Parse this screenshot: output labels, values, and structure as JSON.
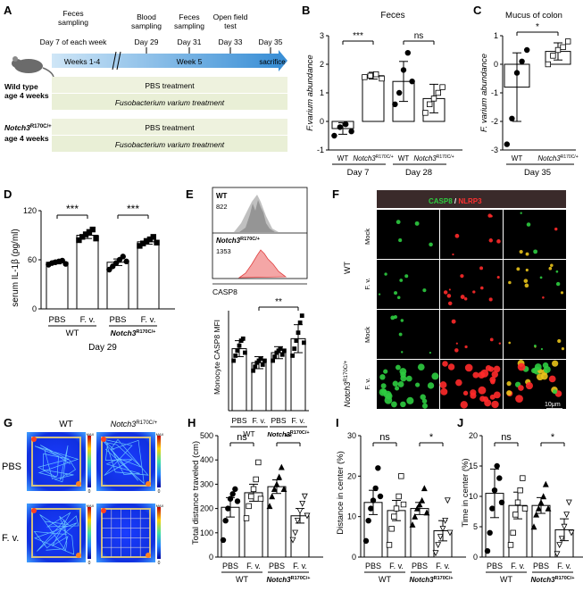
{
  "panelA": {
    "letter": "A",
    "timeline_labels": [
      {
        "l1": "Feces",
        "l2": "sampling",
        "l3": "Day 7 of each week"
      },
      {
        "l1": "Blood",
        "l2": "sampling",
        "l3": "Day 29"
      },
      {
        "l1": "Feces",
        "l2": "sampling",
        "l3": "Day 31"
      },
      {
        "l1": "Open field",
        "l2": "test",
        "l3": "Day 33"
      },
      {
        "l3": "Day 35"
      }
    ],
    "weeks14": "Weeks 1-4",
    "week5": "Week 5",
    "sacrifice": "sacrifice",
    "wt_group": {
      "l1": "Wild type",
      "l2": "age 4 weeks"
    },
    "notch_group": {
      "l1": "Notch3",
      "sup": "R170C/+",
      "l2": "age 4 weeks"
    },
    "pbs_treatment": "PBS treatment",
    "fv_treatment": "Fusobacterium varium treatment"
  },
  "panelB": {
    "letter": "B",
    "chart_data": {
      "type": "bar",
      "title": "Feces",
      "ylabel": "F.varium abundance",
      "ylim": [
        -1,
        3
      ],
      "yticks": [
        "-1",
        "0",
        "1",
        "2",
        "3"
      ],
      "categories": [
        "WT",
        "Notch3R170C/+",
        "WT",
        "Notch3R170C/+"
      ],
      "cat_wt": "WT",
      "cat_notch": "Notch3",
      "cat_sup": "R170C/+",
      "groups": [
        "Day 7",
        "Day 28"
      ],
      "values": [
        -0.25,
        1.6,
        1.4,
        0.8
      ],
      "errors": [
        0.2,
        0.12,
        0.7,
        0.5
      ],
      "points": [
        [
          -0.5,
          -0.2,
          -0.1,
          -0.35
        ],
        [
          1.55,
          1.6,
          1.65,
          1.5
        ],
        [
          0.6,
          1.0,
          1.8,
          2.4,
          1.4
        ],
        [
          0.3,
          0.6,
          0.8,
          1.0,
          1.2
        ]
      ],
      "sig": [
        "***",
        "ns"
      ]
    }
  },
  "panelC": {
    "letter": "C",
    "chart_data": {
      "type": "bar",
      "title": "Mucus of colon",
      "ylabel": "F. varium abundance",
      "ylim": [
        -3,
        1
      ],
      "yticks": [
        "-3",
        "-2",
        "-1",
        "0",
        "1"
      ],
      "cat_wt": "WT",
      "cat_notch": "Notch3",
      "cat_sup": "R170C/+",
      "group": "Day 35",
      "values": [
        -0.8,
        0.45
      ],
      "errors": [
        1.2,
        0.3
      ],
      "points": [
        [
          -2.8,
          -1.9,
          -0.3,
          0.1,
          0.5
        ],
        [
          0.0,
          0.3,
          0.5,
          0.6,
          0.8
        ]
      ],
      "sig": "*"
    }
  },
  "panelD": {
    "letter": "D",
    "chart_data": {
      "type": "bar",
      "ylabel": "serum IL-1β (pg/ml)",
      "ylim": [
        0,
        120
      ],
      "yticks": [
        "0",
        "60",
        "120"
      ],
      "categories": [
        "PBS",
        "F. v.",
        "PBS",
        "F. v."
      ],
      "geno_wt": "WT",
      "geno_notch": "Notch3",
      "geno_sup": "R170C/+",
      "day": "Day 29",
      "values": [
        57,
        90,
        57,
        82
      ],
      "errors": [
        2,
        4,
        4,
        3
      ],
      "points": [
        [
          54,
          56,
          57,
          58,
          59,
          55
        ],
        [
          84,
          88,
          91,
          94,
          97,
          86
        ],
        [
          48,
          52,
          56,
          60,
          64,
          58
        ],
        [
          77,
          80,
          83,
          85,
          88,
          81
        ]
      ],
      "sig": [
        "***",
        "***"
      ]
    }
  },
  "panelE": {
    "letter": "E",
    "hist_wt_label": "WT",
    "hist_wt_value": "822",
    "hist_notch_label": "Notch3",
    "hist_notch_sup": "R170C/+",
    "hist_notch_value": "1353",
    "hist_xlabel": "CASP8",
    "chart_data": {
      "type": "bar",
      "ylabel": "Monocyte CASP8 MFI",
      "categories": [
        "PBS",
        "F. v.",
        "PBS",
        "F. v."
      ],
      "geno_wt": "WT",
      "geno_notch": "Notch3",
      "geno_sup": "R170C/+",
      "values": [
        0.62,
        0.48,
        0.58,
        0.72
      ],
      "errors": [
        0.08,
        0.06,
        0.06,
        0.14
      ],
      "points": [
        [
          0.5,
          0.55,
          0.6,
          0.65,
          0.7,
          0.72,
          0.58
        ],
        [
          0.4,
          0.44,
          0.48,
          0.5,
          0.52,
          0.46,
          0.5
        ],
        [
          0.5,
          0.54,
          0.58,
          0.6,
          0.62,
          0.56,
          0.6
        ],
        [
          0.55,
          0.62,
          0.7,
          0.78,
          0.88,
          0.95,
          0.68
        ]
      ],
      "sig": "**"
    }
  },
  "panelF": {
    "letter": "F",
    "casp8": "CASP8",
    "slash": " / ",
    "nlrp3": "NLRP3",
    "wt": "WT",
    "notch": "Notch3",
    "notch_sup": "R170C/+",
    "mock": "Mock",
    "fv": "F. v.",
    "scale": "10μm",
    "colors": {
      "green": "#2ecc40",
      "red": "#ff2a2a",
      "yellow": "#e8c21a"
    }
  },
  "panelG": {
    "letter": "G",
    "col_wt": "WT",
    "col_notch": "Notch3",
    "col_sup": "R170C/+",
    "row_pbs": "PBS",
    "row_fv": "F. v.",
    "scale_max": "MAX",
    "scale_min": "0"
  },
  "panelH": {
    "letter": "H",
    "chart_data": {
      "type": "bar",
      "ylabel": "Total distance traveled (cm)",
      "ylim": [
        0,
        500
      ],
      "yticks": [
        "0",
        "100",
        "200",
        "300",
        "400",
        "500"
      ],
      "categories": [
        "PBS",
        "F. v.",
        "PBS",
        "F. v."
      ],
      "geno_wt": "WT",
      "geno_notch": "Notch3",
      "geno_sup": "R170C/+",
      "values": [
        205,
        265,
        290,
        170
      ],
      "errors": [
        40,
        35,
        28,
        30
      ],
      "points": [
        [
          70,
          150,
          200,
          240,
          260,
          280,
          230
        ],
        [
          160,
          210,
          250,
          280,
          320,
          390,
          240
        ],
        [
          210,
          250,
          280,
          300,
          330,
          370,
          280
        ],
        [
          70,
          100,
          150,
          190,
          220,
          250,
          170
        ]
      ],
      "sig": [
        "ns",
        "**"
      ]
    }
  },
  "panelI": {
    "letter": "I",
    "chart_data": {
      "type": "bar",
      "ylabel": "Distance in center (%)",
      "ylim": [
        0,
        30
      ],
      "yticks": [
        "0",
        "10",
        "20",
        "30"
      ],
      "categories": [
        "PBS",
        "F. v.",
        "PBS",
        "F. v."
      ],
      "geno_wt": "WT",
      "geno_notch": "Notch3",
      "geno_sup": "R170C/+",
      "values": [
        13.5,
        11.5,
        12.0,
        6.5
      ],
      "errors": [
        3,
        2.5,
        1.5,
        2.5
      ],
      "points": [
        [
          4,
          9,
          12,
          14,
          17,
          22,
          15
        ],
        [
          3,
          7,
          10,
          12,
          15,
          20,
          13
        ],
        [
          8,
          10,
          12,
          13,
          14,
          17,
          11
        ],
        [
          1,
          3,
          5,
          7,
          9,
          14,
          6
        ]
      ],
      "sig": [
        "ns",
        "*"
      ]
    }
  },
  "panelJ": {
    "letter": "J",
    "chart_data": {
      "type": "bar",
      "ylabel": "Time in center (%)",
      "ylim": [
        0,
        20
      ],
      "yticks": [
        "0",
        "5",
        "10",
        "15",
        "20"
      ],
      "categories": [
        "PBS",
        "F. v.",
        "PBS",
        "F. v."
      ],
      "geno_wt": "WT",
      "geno_notch": "Notch3",
      "geno_sup": "R170C/+",
      "values": [
        10.5,
        8.5,
        8.5,
        4.5
      ],
      "errors": [
        4,
        2.2,
        1.3,
        1.8
      ],
      "points": [
        [
          1,
          4,
          8,
          11,
          15,
          13,
          9
        ],
        [
          2,
          4,
          7,
          9,
          11,
          13,
          8
        ],
        [
          5,
          7,
          8,
          9,
          10,
          12,
          8
        ],
        [
          0.5,
          2,
          3,
          5,
          7,
          9,
          4
        ]
      ],
      "sig": [
        "ns",
        "*"
      ]
    }
  }
}
